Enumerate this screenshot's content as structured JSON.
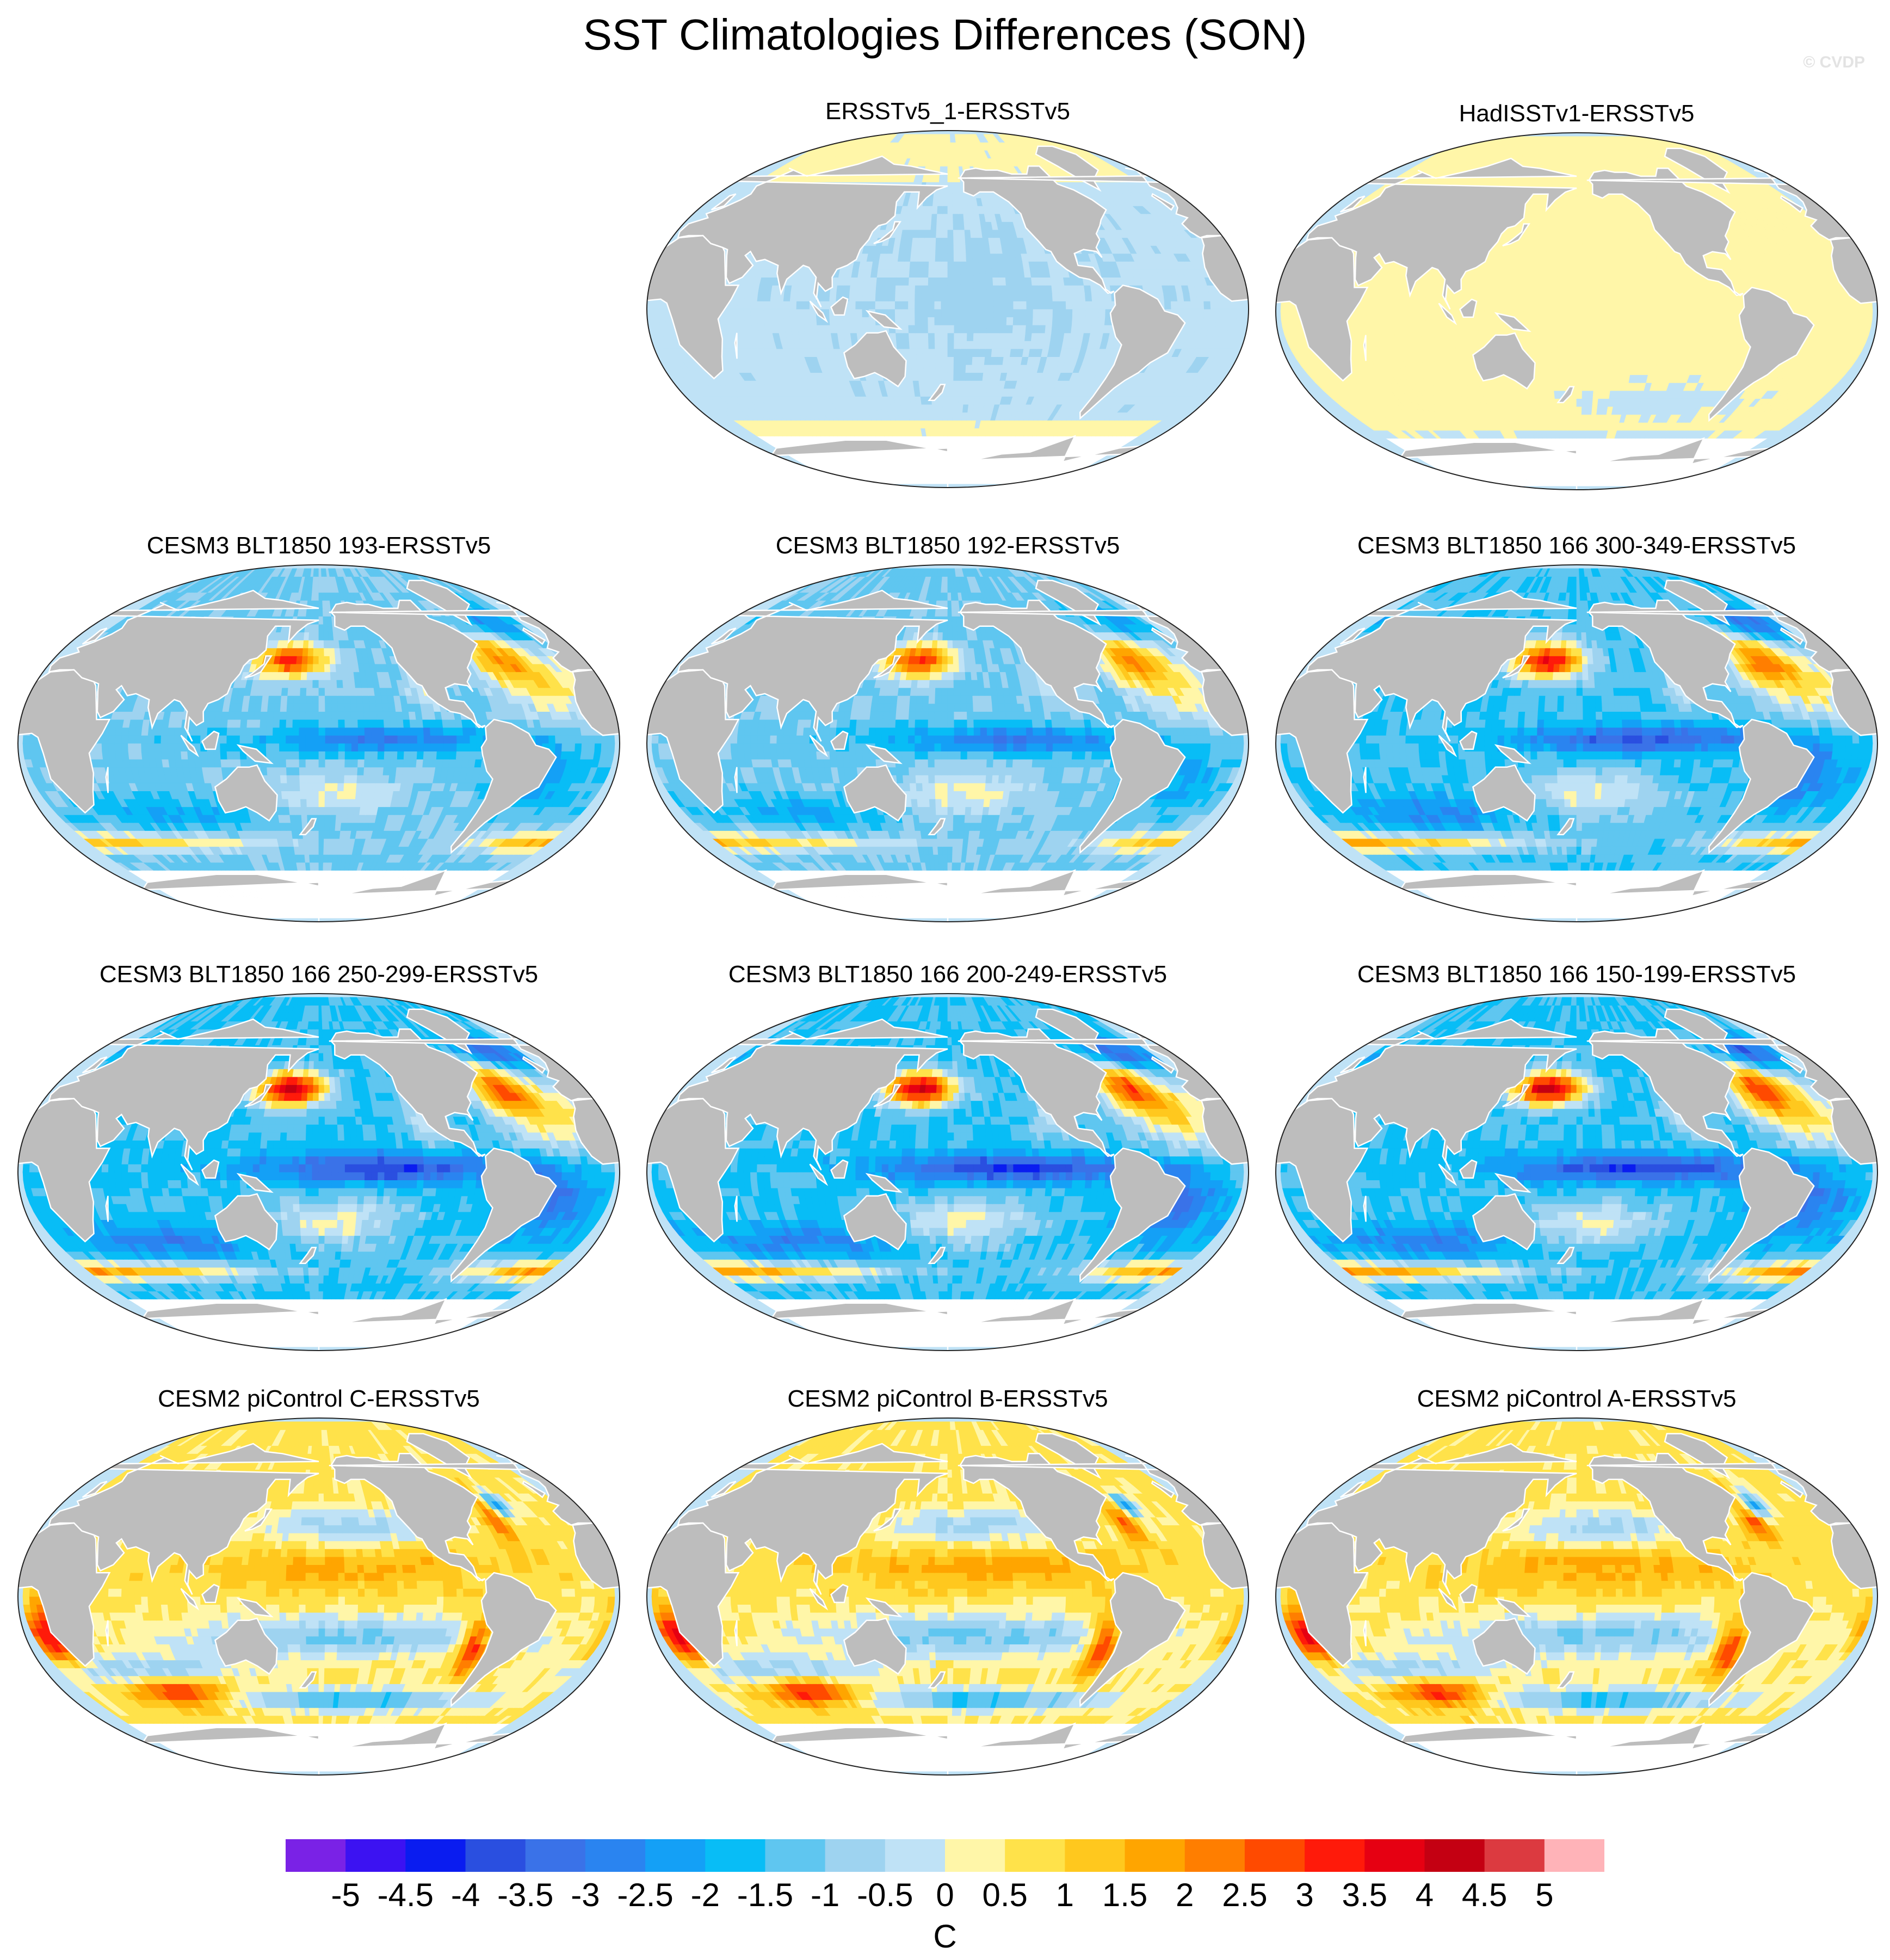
{
  "title": "SST Climatologies Differences (SON)",
  "watermark": "© CVDP",
  "colors": {
    "land": "#bdbdbd",
    "ocean_neutral": "#bfe2f6",
    "sea_ice": "#ffffff",
    "coastline": "#ffffff",
    "map_border": "#222222"
  },
  "panels": [
    {
      "id": "p1",
      "title": "ERSSTv5_1-ERSSTv5",
      "pattern": "small_negative"
    },
    {
      "id": "p2",
      "title": "HadISSTv1-ERSSTv5",
      "pattern": "small_positive"
    },
    {
      "id": "p3",
      "title": "CESM3 BLT1850 193-ERSSTv5",
      "pattern": "cesm3",
      "strength": 0.8
    },
    {
      "id": "p4",
      "title": "CESM3 BLT1850 192-ERSSTv5",
      "pattern": "cesm3",
      "strength": 0.8
    },
    {
      "id": "p5",
      "title": "CESM3 BLT1850 166 300-349-ERSSTv5",
      "pattern": "cesm3",
      "strength": 1.0
    },
    {
      "id": "p6",
      "title": "CESM3 BLT1850 166 250-299-ERSSTv5",
      "pattern": "cesm3",
      "strength": 1.1
    },
    {
      "id": "p7",
      "title": "CESM3 BLT1850 166 200-249-ERSSTv5",
      "pattern": "cesm3",
      "strength": 1.1
    },
    {
      "id": "p8",
      "title": "CESM3 BLT1850 166 150-199-ERSSTv5",
      "pattern": "cesm3",
      "strength": 1.1
    },
    {
      "id": "p9",
      "title": "CESM2 piControl C-ERSSTv5",
      "pattern": "cesm2",
      "strength": 1.0
    },
    {
      "id": "p10",
      "title": "CESM2 piControl B-ERSSTv5",
      "pattern": "cesm2",
      "strength": 1.0
    },
    {
      "id": "p11",
      "title": "CESM2 piControl A-ERSSTv5",
      "pattern": "cesm2",
      "strength": 1.0
    }
  ],
  "colorbar": {
    "units": "C",
    "labels": [
      "-5",
      "-4.5",
      "-4",
      "-3.5",
      "-3",
      "-2.5",
      "-2",
      "-1.5",
      "-1",
      "-0.5",
      "0",
      "0.5",
      "1",
      "1.5",
      "2",
      "2.5",
      "3",
      "3.5",
      "4",
      "4.5",
      "5"
    ],
    "levels": [
      -5,
      -4.5,
      -4,
      -3.5,
      -3,
      -2.5,
      -2,
      -1.5,
      -1,
      -0.5,
      0,
      0.5,
      1,
      1.5,
      2,
      2.5,
      3,
      3.5,
      4,
      4.5,
      5
    ],
    "colors": [
      "#7a22e6",
      "#3c12f2",
      "#0a1cf0",
      "#2a4fe0",
      "#3a72e8",
      "#2a84f0",
      "#14a0f6",
      "#08bdf6",
      "#5fc6f0",
      "#9ed3f0",
      "#bfe2f6",
      "#fff6a8",
      "#ffe24a",
      "#ffc81e",
      "#ffa500",
      "#ff7e00",
      "#ff4a00",
      "#ff1a0a",
      "#e60012",
      "#c40012",
      "#dc3a40",
      "#ffb3b8"
    ]
  }
}
